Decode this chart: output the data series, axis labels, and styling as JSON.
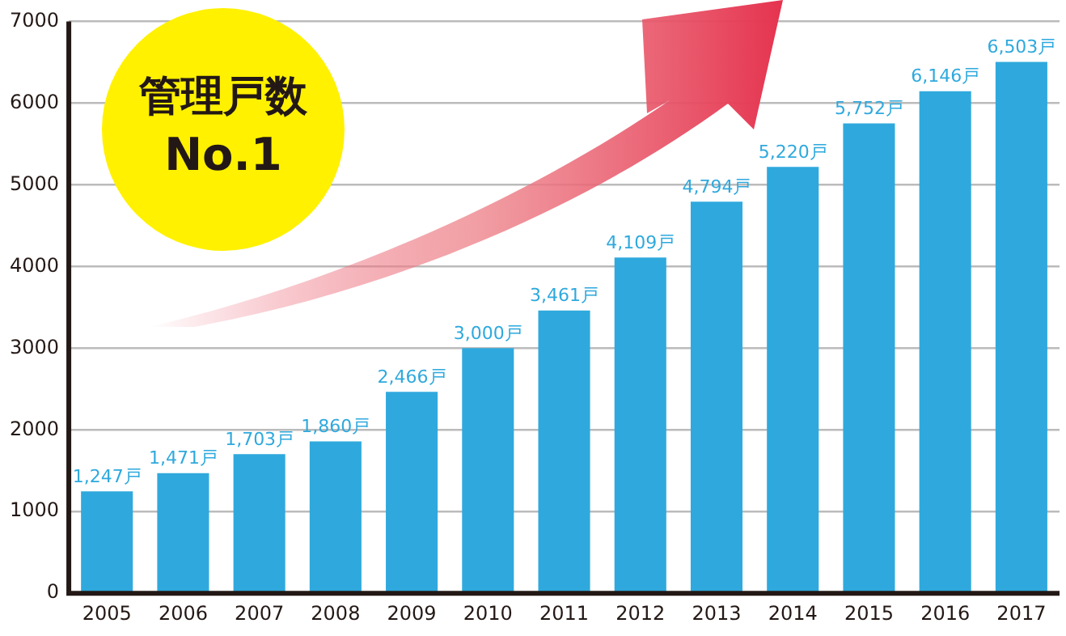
{
  "chart_data": {
    "type": "bar",
    "categories": [
      "2005",
      "2006",
      "2007",
      "2008",
      "2009",
      "2010",
      "2011",
      "2012",
      "2013",
      "2014",
      "2015",
      "2016",
      "2017"
    ],
    "values": [
      1247,
      1471,
      1703,
      1860,
      2466,
      3000,
      3461,
      4109,
      4794,
      5220,
      5752,
      6146,
      6503
    ],
    "value_labels": [
      "1,247戸",
      "1,471戸",
      "1,703戸",
      "1,860戸",
      "2,466戸",
      "3,000戸",
      "3,461戸",
      "4,109戸",
      "4,794戸",
      "5,220戸",
      "5,752戸",
      "6,146戸",
      "6,503戸"
    ],
    "color": "#2fa9dd",
    "ylim": [
      0,
      7000
    ],
    "yticks": [
      0,
      1000,
      2000,
      3000,
      4000,
      5000,
      6000,
      7000
    ],
    "grid": "y",
    "legend": false,
    "annotations": [
      "管理戸数",
      "No.1"
    ]
  }
}
